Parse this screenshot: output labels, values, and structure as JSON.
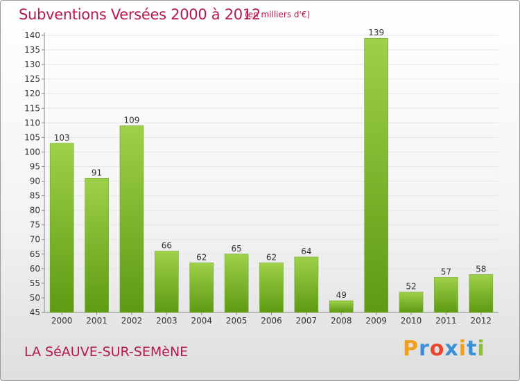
{
  "title": "Subventions Versées 2000 à 2012",
  "subtitle": "(en milliers d'€)",
  "commune": "LA SéAUVE-SUR-SEMèNE",
  "logo": {
    "text": "Proxiti",
    "letters": [
      "P",
      "r",
      "o",
      "x",
      "i",
      "t",
      "i"
    ],
    "colors": [
      "#f0a020",
      "#3a8fd6",
      "#e8452c",
      "#3a8fd6",
      "#f0a020",
      "#3a8fd6",
      "#8ac030"
    ]
  },
  "colors": {
    "bar_top": "#9fd04a",
    "bar_bottom": "#5e9a12",
    "text": "#b5174f",
    "grid": "#e6e6e6"
  },
  "chart_data": {
    "type": "bar",
    "title": "Subventions Versées 2000 à 2012",
    "subtitle": "(en milliers d'€)",
    "categories": [
      "2000",
      "2001",
      "2002",
      "2003",
      "2004",
      "2005",
      "2006",
      "2007",
      "2008",
      "2009",
      "2010",
      "2011",
      "2012"
    ],
    "values": [
      103,
      91,
      109,
      66,
      62,
      65,
      62,
      64,
      49,
      139,
      52,
      57,
      58
    ],
    "ylim": [
      45,
      140
    ],
    "yticks": [
      45,
      50,
      55,
      60,
      65,
      70,
      75,
      80,
      85,
      90,
      95,
      100,
      105,
      110,
      115,
      120,
      125,
      130,
      135,
      140
    ],
    "grid": true,
    "xlabel": "",
    "ylabel": ""
  }
}
